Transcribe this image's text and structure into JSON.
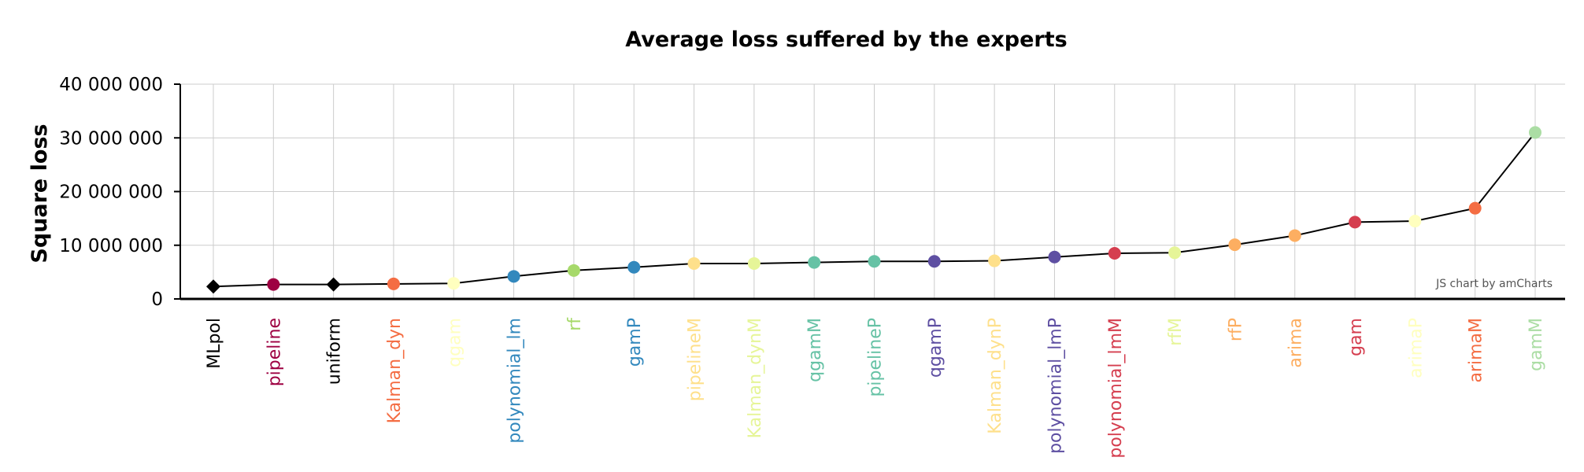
{
  "chart_data": {
    "type": "line",
    "title": "Average loss suffered by the experts",
    "xlabel": "",
    "ylabel": "Square loss",
    "ylim": [
      0,
      40000000
    ],
    "yticks": [
      0,
      10000000,
      20000000,
      30000000,
      40000000
    ],
    "ytick_labels": [
      "0",
      "10 000 000",
      "20 000 000",
      "30 000 000",
      "40 000 000"
    ],
    "grid": true,
    "credit": "JS chart by amCharts",
    "categories": [
      "MLpol",
      "pipeline",
      "uniform",
      "Kalman_dyn",
      "qgam",
      "polynomial_lm",
      "rf",
      "gamP",
      "pipelineM",
      "Kalman_dynM",
      "qgamM",
      "pipelineP",
      "qgamP",
      "Kalman_dynP",
      "polynomial_lmP",
      "polynomial_lmM",
      "rfM",
      "rfP",
      "arima",
      "gam",
      "arimaP",
      "arimaM",
      "gamM"
    ],
    "values": [
      2300000,
      2700000,
      2700000,
      2800000,
      2900000,
      4200000,
      5300000,
      5900000,
      6600000,
      6600000,
      6800000,
      7000000,
      7000000,
      7100000,
      7800000,
      8500000,
      8600000,
      10100000,
      11800000,
      14300000,
      14500000,
      16900000,
      31000000
    ],
    "colors": [
      "#000000",
      "#9e0142",
      "#000000",
      "#f46d43",
      "#ffffbf",
      "#3288bd",
      "#a6d96a",
      "#3288bd",
      "#fee08b",
      "#e6f598",
      "#66c2a5",
      "#66c2a5",
      "#5e4fa2",
      "#fee08b",
      "#5e4fa2",
      "#d53e4f",
      "#e6f598",
      "#fdae61",
      "#fdae61",
      "#d53e4f",
      "#ffffbf",
      "#f46d43",
      "#abdda4"
    ],
    "markers": [
      "diamond",
      "circle",
      "diamond",
      "circle",
      "circle",
      "circle",
      "circle",
      "circle",
      "circle",
      "circle",
      "circle",
      "circle",
      "circle",
      "circle",
      "circle",
      "circle",
      "circle",
      "circle",
      "circle",
      "circle",
      "circle",
      "circle",
      "circle"
    ]
  }
}
